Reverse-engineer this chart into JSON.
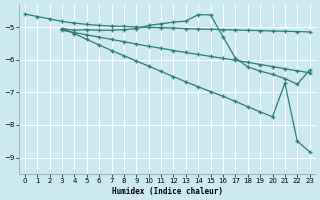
{
  "xlabel": "Humidex (Indice chaleur)",
  "background_color": "#cce8f0",
  "grid_color": "#ffffff",
  "line_color": "#2e7d6e",
  "xlim": [
    -0.5,
    23.5
  ],
  "ylim": [
    -9.5,
    -4.3
  ],
  "xticks": [
    0,
    1,
    2,
    3,
    4,
    5,
    6,
    7,
    8,
    9,
    10,
    11,
    12,
    13,
    14,
    15,
    16,
    17,
    18,
    19,
    20,
    21,
    22,
    23
  ],
  "yticks": [
    -9,
    -8,
    -7,
    -6,
    -5
  ],
  "line1_x": [
    0,
    1,
    2,
    3,
    4,
    5,
    6,
    7,
    8,
    9,
    10,
    11,
    12,
    13,
    14,
    15,
    16,
    17,
    18,
    19,
    20,
    21,
    22,
    23
  ],
  "line1_y": [
    -4.6,
    -4.68,
    -4.75,
    -4.83,
    -4.88,
    -4.92,
    -4.95,
    -4.97,
    -4.98,
    -5.0,
    -5.01,
    -5.02,
    -5.03,
    -5.05,
    -5.06,
    -5.07,
    -5.08,
    -5.09,
    -5.1,
    -5.11,
    -5.12,
    -5.13,
    -5.14,
    -5.15
  ],
  "line2_x": [
    3,
    4,
    5,
    6,
    7,
    8,
    9,
    10,
    11,
    12,
    13,
    14,
    15,
    16,
    17,
    18,
    19,
    20,
    21,
    22,
    23
  ],
  "line2_y": [
    -5.1,
    -5.17,
    -5.24,
    -5.31,
    -5.38,
    -5.45,
    -5.52,
    -5.59,
    -5.65,
    -5.72,
    -5.78,
    -5.84,
    -5.9,
    -5.96,
    -6.02,
    -6.08,
    -6.15,
    -6.21,
    -6.28,
    -6.34,
    -6.4
  ],
  "line3_x": [
    3,
    4,
    5,
    6,
    7,
    8,
    9,
    10,
    11,
    12,
    13,
    14,
    15,
    16,
    17,
    18,
    19,
    20,
    21,
    22,
    23
  ],
  "line3_y": [
    -5.05,
    -5.1,
    -5.08,
    -5.1,
    -5.1,
    -5.08,
    -5.05,
    -4.95,
    -4.9,
    -4.85,
    -4.82,
    -4.62,
    -4.63,
    -5.3,
    -5.95,
    -6.22,
    -6.35,
    -6.45,
    -6.58,
    -6.75,
    -6.32
  ],
  "line4_x": [
    3,
    4,
    5,
    6,
    7,
    8,
    9,
    10,
    11,
    12,
    13,
    14,
    15,
    16,
    17,
    18,
    19,
    20,
    21,
    22,
    23
  ],
  "line4_y": [
    -5.05,
    -5.2,
    -5.38,
    -5.55,
    -5.72,
    -5.88,
    -6.04,
    -6.2,
    -6.36,
    -6.52,
    -6.68,
    -6.83,
    -6.98,
    -7.12,
    -7.28,
    -7.44,
    -7.6,
    -7.75,
    -6.72,
    -8.5,
    -8.82
  ]
}
